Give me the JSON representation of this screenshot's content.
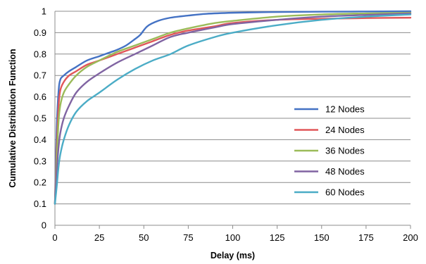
{
  "chart_data": {
    "type": "line",
    "title": "",
    "xlabel": "Delay (ms)",
    "ylabel": "Cumulative Distribution Function",
    "xlim": [
      0,
      200
    ],
    "ylim": [
      0,
      1
    ],
    "x_ticks": [
      "0",
      "25",
      "50",
      "75",
      "100",
      "125",
      "150",
      "175",
      "200"
    ],
    "y_ticks": [
      "0",
      "0.1",
      "0.2",
      "0.3",
      "0.4",
      "0.5",
      "0.6",
      "0.7",
      "0.8",
      "0.9",
      "1"
    ],
    "grid": "horizontal",
    "legend_position": "right",
    "series": [
      {
        "name": "12 Nodes",
        "color": "#4472c4",
        "x": [
          0,
          1,
          2,
          3,
          5,
          8,
          12,
          18,
          25,
          30,
          35,
          40,
          45,
          48,
          52,
          58,
          65,
          75,
          85,
          100,
          120,
          150,
          175,
          200
        ],
        "y": [
          0.1,
          0.45,
          0.62,
          0.68,
          0.7,
          0.72,
          0.74,
          0.77,
          0.79,
          0.805,
          0.82,
          0.84,
          0.87,
          0.89,
          0.93,
          0.955,
          0.97,
          0.98,
          0.988,
          0.993,
          0.996,
          0.998,
          0.999,
          1.0
        ]
      },
      {
        "name": "24 Nodes",
        "color": "#e15759",
        "x": [
          0,
          1,
          2,
          3,
          5,
          8,
          12,
          18,
          25,
          35,
          45,
          55,
          65,
          75,
          90,
          100,
          125,
          150,
          175,
          200
        ],
        "y": [
          0.1,
          0.35,
          0.55,
          0.63,
          0.67,
          0.7,
          0.72,
          0.75,
          0.77,
          0.8,
          0.83,
          0.86,
          0.89,
          0.91,
          0.93,
          0.945,
          0.96,
          0.965,
          0.968,
          0.97
        ]
      },
      {
        "name": "36 Nodes",
        "color": "#9bbb59",
        "x": [
          0,
          1,
          2,
          3,
          5,
          8,
          12,
          18,
          25,
          35,
          45,
          55,
          65,
          75,
          90,
          100,
          125,
          150,
          175,
          200
        ],
        "y": [
          0.1,
          0.3,
          0.48,
          0.56,
          0.62,
          0.66,
          0.7,
          0.74,
          0.77,
          0.81,
          0.84,
          0.87,
          0.9,
          0.92,
          0.945,
          0.955,
          0.975,
          0.985,
          0.99,
          0.993
        ]
      },
      {
        "name": "48 Nodes",
        "color": "#8064a2",
        "x": [
          0,
          1,
          2,
          3,
          5,
          8,
          12,
          18,
          25,
          35,
          45,
          55,
          65,
          75,
          90,
          100,
          125,
          150,
          175,
          200
        ],
        "y": [
          0.1,
          0.25,
          0.36,
          0.43,
          0.5,
          0.56,
          0.62,
          0.67,
          0.71,
          0.76,
          0.8,
          0.84,
          0.88,
          0.9,
          0.925,
          0.94,
          0.96,
          0.975,
          0.983,
          0.99
        ]
      },
      {
        "name": "60 Nodes",
        "color": "#4bacc6",
        "x": [
          0,
          1,
          2,
          3,
          5,
          8,
          12,
          18,
          25,
          35,
          45,
          55,
          65,
          75,
          90,
          100,
          125,
          150,
          175,
          200
        ],
        "y": [
          0.1,
          0.18,
          0.27,
          0.33,
          0.4,
          0.47,
          0.53,
          0.58,
          0.62,
          0.68,
          0.73,
          0.77,
          0.8,
          0.84,
          0.88,
          0.9,
          0.935,
          0.96,
          0.975,
          0.985
        ]
      }
    ]
  }
}
